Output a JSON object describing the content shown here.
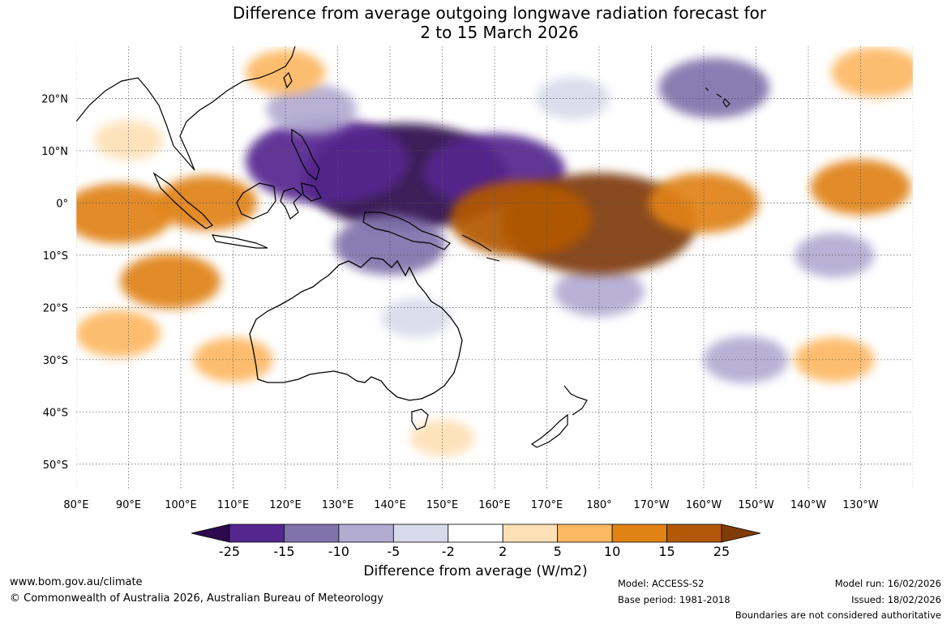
{
  "title": {
    "line1": "Difference from average outgoing longwave radiation forecast for",
    "line2": "2 to 15 March 2026"
  },
  "map": {
    "lon_labels": [
      "80°E",
      "90°E",
      "100°E",
      "110°E",
      "120°E",
      "130°E",
      "140°E",
      "150°E",
      "160°E",
      "170°E",
      "180°",
      "170°W",
      "160°W",
      "150°W",
      "140°W",
      "130°W"
    ],
    "lat_labels": [
      "20°N",
      "10°N",
      "0°",
      "10°S",
      "20°S",
      "30°S",
      "40°S",
      "50°S"
    ],
    "lon_range": [
      80,
      240
    ],
    "lat_range": [
      -55,
      30
    ]
  },
  "colorbar": {
    "title": "Difference from average (W/m2)",
    "tick_labels": [
      "-25",
      "-15",
      "-10",
      "-5",
      "-2",
      "2",
      "5",
      "10",
      "15",
      "25"
    ],
    "colors": [
      "#2d0a4e",
      "#54278f",
      "#8073ac",
      "#b2abd2",
      "#d8daeb",
      "#ffffff",
      "#fee0b6",
      "#fdb863",
      "#e08214",
      "#b35806",
      "#7f3b08"
    ]
  },
  "chart_data": {
    "type": "heatmap",
    "title": "Difference from average outgoing longwave radiation forecast for 2 to 15 March 2026",
    "units": "W/m2",
    "levels": [
      -25,
      -15,
      -10,
      -5,
      -2,
      2,
      5,
      10,
      15,
      25
    ],
    "x_range_lon": [
      80,
      240
    ],
    "y_range_lat": [
      -55,
      30
    ],
    "anomalies": [
      {
        "lon": 143,
        "lat": 5,
        "value": -30
      },
      {
        "lon": 128,
        "lat": 8,
        "value": -22
      },
      {
        "lon": 160,
        "lat": 6,
        "value": -18
      },
      {
        "lon": 140,
        "lat": -8,
        "value": -12
      },
      {
        "lon": 125,
        "lat": 18,
        "value": -8
      },
      {
        "lon": 202,
        "lat": 22,
        "value": -12
      },
      {
        "lon": 175,
        "lat": 20,
        "value": -5
      },
      {
        "lon": 180,
        "lat": -17,
        "value": -8
      },
      {
        "lon": 208,
        "lat": -30,
        "value": -7
      },
      {
        "lon": 225,
        "lat": -10,
        "value": -6
      },
      {
        "lon": 145,
        "lat": -22,
        "value": -4
      },
      {
        "lon": 180,
        "lat": -4,
        "value": 28
      },
      {
        "lon": 165,
        "lat": -3,
        "value": 18
      },
      {
        "lon": 200,
        "lat": 0,
        "value": 12
      },
      {
        "lon": 230,
        "lat": 3,
        "value": 10
      },
      {
        "lon": 88,
        "lat": -2,
        "value": 12
      },
      {
        "lon": 105,
        "lat": 0,
        "value": 10
      },
      {
        "lon": 98,
        "lat": -15,
        "value": 10
      },
      {
        "lon": 88,
        "lat": -25,
        "value": 7
      },
      {
        "lon": 110,
        "lat": -30,
        "value": 6
      },
      {
        "lon": 120,
        "lat": 25,
        "value": 6
      },
      {
        "lon": 90,
        "lat": 12,
        "value": 4
      },
      {
        "lon": 233,
        "lat": 25,
        "value": 8
      },
      {
        "lon": 225,
        "lat": -30,
        "value": 6
      },
      {
        "lon": 150,
        "lat": -45,
        "value": 3
      }
    ]
  },
  "footer": {
    "website": "www.bom.gov.au/climate",
    "copyright": "© Commonwealth of Australia 2026, Australian Bureau of Meteorology",
    "model": "Model: ACCESS-S2",
    "base_period": "Base period: 1981-2018",
    "model_run": "Model run: 16/02/2026",
    "issued": "Issued: 18/02/2026",
    "disclaimer": "Boundaries are not considered authoritative"
  }
}
